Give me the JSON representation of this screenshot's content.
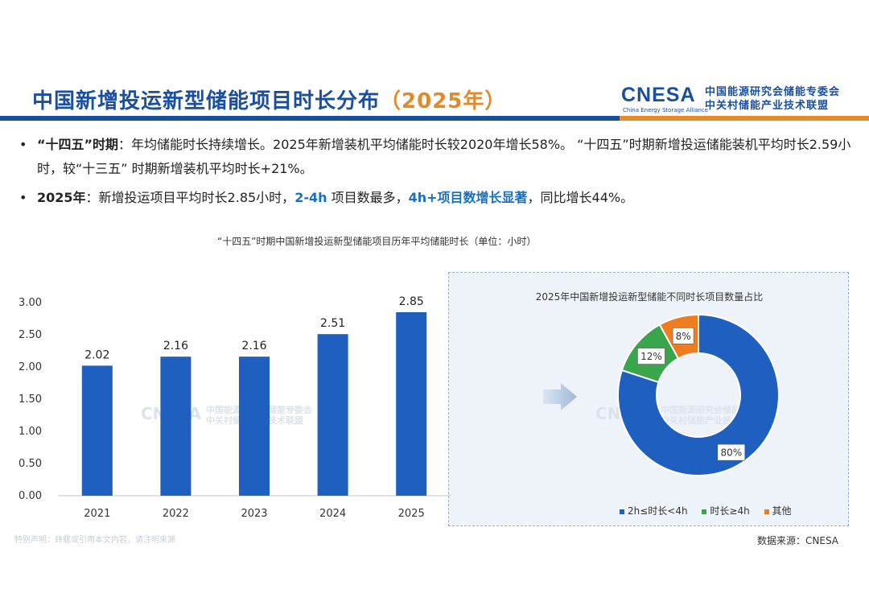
{
  "header": {
    "title_main": "中国新增投运新型储能项目时长分布",
    "title_year": "（2025年）",
    "logo": {
      "mark": "CNESA",
      "sub": "China Energy Storage Alliance",
      "cn_line1": "中国能源研究会储能专委会",
      "cn_line2": "中关村储能产业技术联盟"
    },
    "colors": {
      "blue": "#1a4fa0",
      "orange": "#e98a2a"
    }
  },
  "bullets": [
    {
      "lead": "“十四五”时期",
      "text": "：年均储能时长持续增长。2025年新增装机平均储能时长较2020年增长58%。 “十四五”时期新增投运储能装机平均时长2.59小时，较“十三五” 时期新增装机平均时长+21%。"
    },
    {
      "lead": "2025年",
      "text1": "：新增投运项目平均时长2.85小时，",
      "hl1": "2-4h",
      "text2": " 项目数最多，",
      "hl2": "4h+项目数增长显著",
      "text3": "，同比增长44%。"
    }
  ],
  "watermark": {
    "mark": "CNESA",
    "line1": "中国能源研究会储能专委会",
    "line2": "中关村储能产业技术联盟"
  },
  "footer": {
    "disclaimer": "特别声明：转载或引用本文内容，请注明来源",
    "source": "数据来源：CNESA"
  },
  "chart_data": [
    {
      "type": "bar",
      "title": "“十四五”时期中国新增投运新型储能项目历年平均储能时长（单位：小时）",
      "categories": [
        "2021",
        "2022",
        "2023",
        "2024",
        "2025"
      ],
      "values": [
        2.02,
        2.16,
        2.16,
        2.51,
        2.85
      ],
      "value_labels": [
        "2.02",
        "2.16",
        "2.16",
        "2.51",
        "2.85"
      ],
      "ylim": [
        0,
        3.0
      ],
      "yticks": [
        "0.00",
        "0.50",
        "1.00",
        "1.50",
        "2.00",
        "2.50",
        "3.00"
      ],
      "ytick_values": [
        0,
        0.5,
        1.0,
        1.5,
        2.0,
        2.5,
        3.0
      ],
      "xlabel": "",
      "ylabel": "",
      "grid": false,
      "color": "#1f5fbf",
      "highlight_category": "2025"
    },
    {
      "type": "pie",
      "subtype": "donut",
      "title": "2025年中国新增投运新型储能不同时长项目数量占比",
      "slices": [
        {
          "name": "2h≤时长<4h",
          "value": 80,
          "label": "80%",
          "color": "#1f5fbf"
        },
        {
          "name": "时长≥4h",
          "value": 12,
          "label": "12%",
          "color": "#3aa64b"
        },
        {
          "name": "其他",
          "value": 8,
          "label": "8%",
          "color": "#ee7d22"
        }
      ],
      "legend_position": "bottom"
    }
  ]
}
